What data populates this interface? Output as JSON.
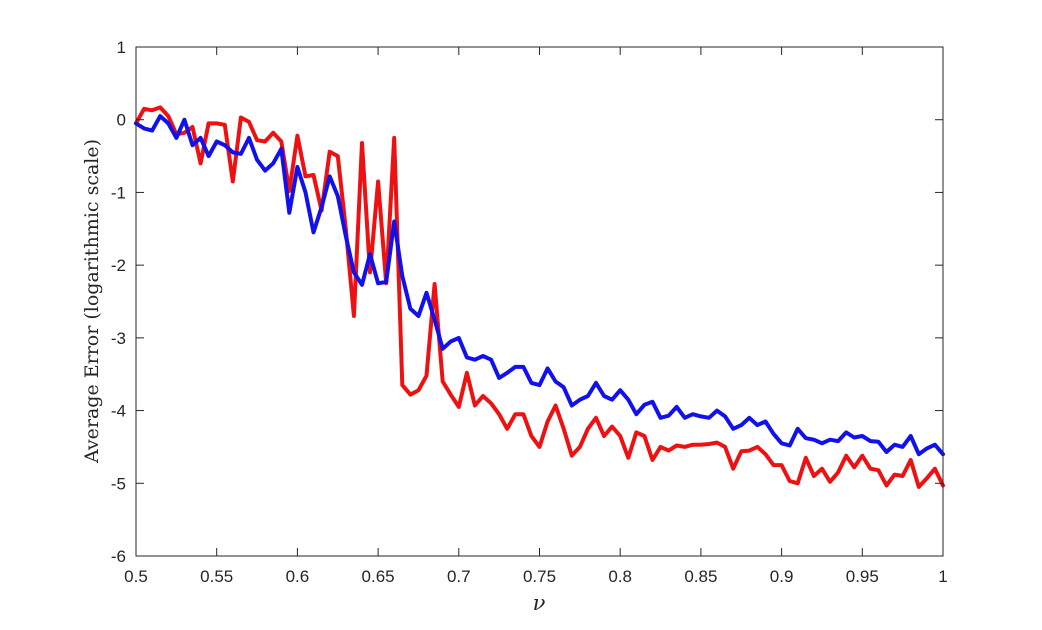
{
  "chart_data": {
    "type": "line",
    "xlabel": "ν",
    "ylabel": "Average Error  (logarithmic scale)",
    "xlim": [
      0.5,
      1.0
    ],
    "ylim": [
      -6,
      1
    ],
    "xticks": [
      "0.5",
      "0.55",
      "0.6",
      "0.65",
      "0.7",
      "0.75",
      "0.8",
      "0.85",
      "0.9",
      "0.95",
      "1"
    ],
    "yticks": [
      "1",
      "0",
      "-1",
      "-2",
      "-3",
      "-4",
      "-5",
      "-6"
    ],
    "grid": false,
    "legend": "none",
    "series": [
      {
        "color": "#ee1111",
        "x": [
          0.5,
          0.505,
          0.51,
          0.515,
          0.52,
          0.525,
          0.53,
          0.535,
          0.54,
          0.545,
          0.55,
          0.555,
          0.56,
          0.565,
          0.57,
          0.575,
          0.58,
          0.585,
          0.59,
          0.595,
          0.6,
          0.605,
          0.61,
          0.615,
          0.62,
          0.625,
          0.63,
          0.635,
          0.64,
          0.645,
          0.65,
          0.655,
          0.66,
          0.665,
          0.67,
          0.675,
          0.68,
          0.685,
          0.69,
          0.695,
          0.7,
          0.705,
          0.71,
          0.715,
          0.72,
          0.725,
          0.73,
          0.735,
          0.74,
          0.745,
          0.75,
          0.755,
          0.76,
          0.765,
          0.77,
          0.775,
          0.78,
          0.785,
          0.79,
          0.795,
          0.8,
          0.805,
          0.81,
          0.815,
          0.82,
          0.825,
          0.83,
          0.835,
          0.84,
          0.845,
          0.85,
          0.855,
          0.86,
          0.865,
          0.87,
          0.875,
          0.88,
          0.885,
          0.89,
          0.895,
          0.9,
          0.905,
          0.91,
          0.915,
          0.92,
          0.925,
          0.93,
          0.935,
          0.94,
          0.945,
          0.95,
          0.955,
          0.96,
          0.965,
          0.97,
          0.975,
          0.98,
          0.985,
          0.99,
          0.995,
          1.0
        ],
        "y": [
          -0.05,
          0.15,
          0.13,
          0.17,
          0.05,
          -0.2,
          -0.18,
          -0.1,
          -0.6,
          -0.05,
          -0.05,
          -0.07,
          -0.85,
          0.03,
          -0.03,
          -0.28,
          -0.3,
          -0.18,
          -0.3,
          -0.98,
          -0.22,
          -0.78,
          -0.76,
          -1.25,
          -0.44,
          -0.5,
          -1.5,
          -2.7,
          -0.32,
          -2.1,
          -0.85,
          -2.25,
          -0.25,
          -3.65,
          -3.78,
          -3.72,
          -3.52,
          -2.26,
          -3.6,
          -3.78,
          -3.95,
          -3.48,
          -3.93,
          -3.8,
          -3.9,
          -4.05,
          -4.25,
          -4.05,
          -4.05,
          -4.35,
          -4.5,
          -4.15,
          -3.93,
          -4.25,
          -4.62,
          -4.5,
          -4.25,
          -4.1,
          -4.35,
          -4.22,
          -4.35,
          -4.65,
          -4.3,
          -4.35,
          -4.68,
          -4.5,
          -4.55,
          -4.48,
          -4.5,
          -4.47,
          -4.47,
          -4.46,
          -4.44,
          -4.5,
          -4.8,
          -4.56,
          -4.55,
          -4.5,
          -4.6,
          -4.75,
          -4.75,
          -4.97,
          -5.0,
          -4.65,
          -4.9,
          -4.8,
          -4.98,
          -4.85,
          -4.62,
          -4.78,
          -4.62,
          -4.8,
          -4.82,
          -5.03,
          -4.88,
          -4.9,
          -4.68,
          -5.05,
          -4.93,
          -4.8,
          -5.03
        ]
      },
      {
        "color": "#1111ee",
        "x": [
          0.5,
          0.505,
          0.51,
          0.515,
          0.52,
          0.525,
          0.53,
          0.535,
          0.54,
          0.545,
          0.55,
          0.555,
          0.56,
          0.565,
          0.57,
          0.575,
          0.58,
          0.585,
          0.59,
          0.595,
          0.6,
          0.605,
          0.61,
          0.615,
          0.62,
          0.625,
          0.63,
          0.635,
          0.64,
          0.645,
          0.65,
          0.655,
          0.66,
          0.665,
          0.67,
          0.675,
          0.68,
          0.685,
          0.69,
          0.695,
          0.7,
          0.705,
          0.71,
          0.715,
          0.72,
          0.725,
          0.73,
          0.735,
          0.74,
          0.745,
          0.75,
          0.755,
          0.76,
          0.765,
          0.77,
          0.775,
          0.78,
          0.785,
          0.79,
          0.795,
          0.8,
          0.805,
          0.81,
          0.815,
          0.82,
          0.825,
          0.83,
          0.835,
          0.84,
          0.845,
          0.85,
          0.855,
          0.86,
          0.865,
          0.87,
          0.875,
          0.88,
          0.885,
          0.89,
          0.895,
          0.9,
          0.905,
          0.91,
          0.915,
          0.92,
          0.925,
          0.93,
          0.935,
          0.94,
          0.945,
          0.95,
          0.955,
          0.96,
          0.965,
          0.97,
          0.975,
          0.98,
          0.985,
          0.99,
          0.995,
          1.0
        ],
        "y": [
          -0.05,
          -0.12,
          -0.15,
          0.05,
          -0.05,
          -0.25,
          0.0,
          -0.35,
          -0.25,
          -0.5,
          -0.3,
          -0.35,
          -0.45,
          -0.47,
          -0.25,
          -0.55,
          -0.7,
          -0.6,
          -0.4,
          -1.28,
          -0.65,
          -1.0,
          -1.55,
          -1.2,
          -0.78,
          -1.05,
          -1.6,
          -2.1,
          -2.27,
          -1.85,
          -2.25,
          -2.23,
          -1.4,
          -2.15,
          -2.6,
          -2.7,
          -2.38,
          -2.75,
          -3.15,
          -3.05,
          -3.0,
          -3.27,
          -3.3,
          -3.25,
          -3.3,
          -3.55,
          -3.48,
          -3.4,
          -3.4,
          -3.62,
          -3.65,
          -3.42,
          -3.6,
          -3.68,
          -3.93,
          -3.85,
          -3.8,
          -3.62,
          -3.8,
          -3.85,
          -3.72,
          -3.85,
          -4.05,
          -3.92,
          -3.88,
          -4.1,
          -4.07,
          -3.95,
          -4.1,
          -4.05,
          -4.08,
          -4.1,
          -4.0,
          -4.08,
          -4.25,
          -4.2,
          -4.1,
          -4.2,
          -4.15,
          -4.32,
          -4.45,
          -4.48,
          -4.25,
          -4.38,
          -4.4,
          -4.45,
          -4.4,
          -4.42,
          -4.3,
          -4.37,
          -4.35,
          -4.42,
          -4.43,
          -4.57,
          -4.47,
          -4.5,
          -4.35,
          -4.6,
          -4.52,
          -4.47,
          -4.6
        ]
      }
    ]
  }
}
